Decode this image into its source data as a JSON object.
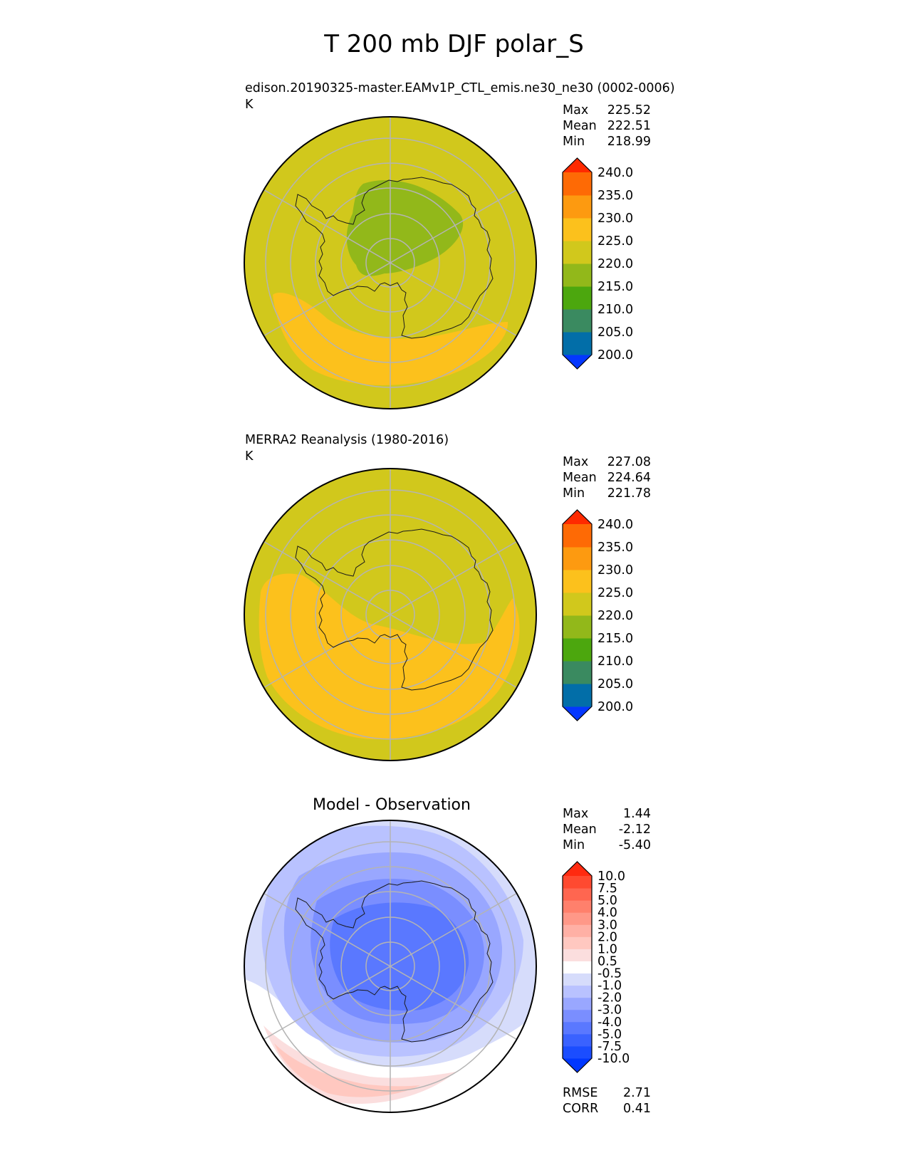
{
  "title": "T 200 mb DJF polar_S",
  "panels": [
    {
      "id": "model",
      "title": "edison.20190325-master.EAMv1P_CTL_emis.ne30_ne30 (0002-0006)",
      "units": "K",
      "stats": [
        {
          "label": "Max",
          "value": "225.52"
        },
        {
          "label": "Mean",
          "value": "222.51"
        },
        {
          "label": "Min",
          "value": "218.99"
        }
      ],
      "colorbar": {
        "ticks": [
          "240.0",
          "235.0",
          "230.0",
          "225.0",
          "220.0",
          "215.0",
          "210.0",
          "205.0",
          "200.0"
        ],
        "colors_bottom_to_top": [
          "#0437ff",
          "#026ea8",
          "#3a8a60",
          "#4ca70e",
          "#92b81a",
          "#d1c81c",
          "#fcc11c",
          "#fd9a10",
          "#fe6a05",
          "#ff2a00"
        ]
      }
    },
    {
      "id": "obs",
      "title": "MERRA2 Reanalysis (1980-2016)",
      "units": "K",
      "stats": [
        {
          "label": "Max",
          "value": "227.08"
        },
        {
          "label": "Mean",
          "value": "224.64"
        },
        {
          "label": "Min",
          "value": "221.78"
        }
      ],
      "colorbar": {
        "ticks": [
          "240.0",
          "235.0",
          "230.0",
          "225.0",
          "220.0",
          "215.0",
          "210.0",
          "205.0",
          "200.0"
        ],
        "colors_bottom_to_top": [
          "#0437ff",
          "#026ea8",
          "#3a8a60",
          "#4ca70e",
          "#92b81a",
          "#d1c81c",
          "#fcc11c",
          "#fd9a10",
          "#fe6a05",
          "#ff2a00"
        ]
      }
    },
    {
      "id": "diff",
      "title": "Model - Observation",
      "stats": [
        {
          "label": "Max",
          "value": "1.44"
        },
        {
          "label": "Mean",
          "value": "-2.12"
        },
        {
          "label": "Min",
          "value": "-5.40"
        }
      ],
      "metrics": [
        {
          "label": "RMSE",
          "value": "2.71"
        },
        {
          "label": "CORR",
          "value": "0.41"
        }
      ],
      "colorbar": {
        "ticks": [
          "10.0",
          "7.5",
          "5.0",
          "4.0",
          "3.0",
          "2.0",
          "1.0",
          "0.5",
          "-0.5",
          "-1.0",
          "-2.0",
          "-3.0",
          "-4.0",
          "-5.0",
          "-7.5",
          "-10.0"
        ],
        "colors_bottom_to_top": [
          "#0037ff",
          "#1b4dff",
          "#3a62ff",
          "#5a78ff",
          "#7a8eff",
          "#99a7ff",
          "#b9c2ff",
          "#d6dcfb",
          "#ffffff",
          "#fbdede",
          "#ffc8c0",
          "#ffb0a5",
          "#ff9888",
          "#ff806c",
          "#ff6650",
          "#ff4a30",
          "#ff2a10"
        ]
      }
    }
  ],
  "chart_data": [
    {
      "type": "heatmap",
      "projection": "south polar stereographic",
      "title": "edison.20190325-master.EAMv1P_CTL_emis.ne30_ne30 (0002-0006)",
      "variable": "T 200 mb DJF",
      "units": "K",
      "max": 225.52,
      "mean": 222.51,
      "min": 218.99,
      "levels": [
        200,
        205,
        210,
        215,
        220,
        225,
        230,
        235,
        240
      ],
      "colorbar_extend": "both",
      "regions": [
        {
          "range": [
            220,
            225
          ],
          "description": "background over most of the domain"
        },
        {
          "range": [
            215,
            220
          ],
          "description": "over East Antarctic plateau / pole"
        },
        {
          "range": [
            225,
            230
          ],
          "description": "ring band near 55-60S on Atlantic/Pacific side"
        }
      ]
    },
    {
      "type": "heatmap",
      "projection": "south polar stereographic",
      "title": "MERRA2 Reanalysis (1980-2016)",
      "variable": "T 200 mb DJF",
      "units": "K",
      "max": 227.08,
      "mean": 224.64,
      "min": 221.78,
      "levels": [
        200,
        205,
        210,
        215,
        220,
        225,
        230,
        235,
        240
      ],
      "colorbar_extend": "both",
      "regions": [
        {
          "range": [
            220,
            225
          ],
          "description": "East Antarctica and outer Indian Ocean sector"
        },
        {
          "range": [
            225,
            230
          ],
          "description": "broad ring over West Antarctica / Southern Ocean"
        }
      ]
    },
    {
      "type": "heatmap",
      "projection": "south polar stereographic",
      "title": "Model - Observation",
      "units": "K",
      "max": 1.44,
      "mean": -2.12,
      "min": -5.4,
      "rmse": 2.71,
      "corr": 0.41,
      "levels": [
        -10,
        -7.5,
        -5,
        -4,
        -3,
        -2,
        -1,
        -0.5,
        0.5,
        1,
        2,
        3,
        4,
        5,
        7.5,
        10
      ],
      "colorbar_extend": "both",
      "regions": [
        {
          "range": [
            -5,
            -3
          ],
          "description": "over Antarctica interior"
        },
        {
          "range": [
            -3,
            -1
          ],
          "description": "surrounding ring to ~60S"
        },
        {
          "range": [
            -0.5,
            0.5
          ],
          "description": "near-zero band around 50S"
        },
        {
          "range": [
            0.5,
            2
          ],
          "description": "positive arc near outer boundary (bottom-left)"
        }
      ]
    }
  ]
}
